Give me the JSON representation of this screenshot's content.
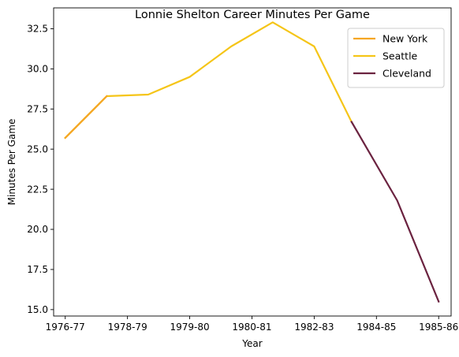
{
  "chart_data": {
    "type": "line",
    "title": "Lonnie Shelton Career Minutes Per Game",
    "xlabel": "Year",
    "ylabel": "Minutes Per Game",
    "xlim": [
      -0.28,
      9.3
    ],
    "ylim": [
      14.6,
      33.8
    ],
    "x_ticks": [
      {
        "pos": 0,
        "label": "1976-77"
      },
      {
        "pos": 1.5,
        "label": "1978-79"
      },
      {
        "pos": 3,
        "label": "1979-80"
      },
      {
        "pos": 4.5,
        "label": "1980-81"
      },
      {
        "pos": 6,
        "label": "1982-83"
      },
      {
        "pos": 7.5,
        "label": "1984-85"
      },
      {
        "pos": 9,
        "label": "1985-86"
      }
    ],
    "y_ticks": [
      {
        "value": 15.0,
        "label": "15.0"
      },
      {
        "value": 17.5,
        "label": "17.5"
      },
      {
        "value": 20.0,
        "label": "20.0"
      },
      {
        "value": 22.5,
        "label": "22.5"
      },
      {
        "value": 25.0,
        "label": "25.0"
      },
      {
        "value": 27.5,
        "label": "27.5"
      },
      {
        "value": 30.0,
        "label": "30.0"
      },
      {
        "value": 32.5,
        "label": "32.5"
      }
    ],
    "grid": false,
    "legend_position": "top-right",
    "series": [
      {
        "name": "Seattle",
        "color": "#F5C518",
        "points": [
          [
            0,
            25.7
          ],
          [
            1,
            28.3
          ],
          [
            2,
            28.4
          ],
          [
            3,
            29.5
          ],
          [
            4,
            31.4
          ],
          [
            5,
            32.9
          ],
          [
            6,
            31.4
          ],
          [
            6.9,
            26.7
          ]
        ]
      },
      {
        "name": "New York",
        "color": "#F5A623",
        "points": [
          [
            0,
            25.7
          ],
          [
            1,
            28.3
          ]
        ]
      },
      {
        "name": "Cleveland",
        "color": "#6B2340",
        "points": [
          [
            6.9,
            26.7
          ],
          [
            8,
            21.8
          ],
          [
            9,
            15.5
          ]
        ]
      }
    ],
    "legend_order": [
      "New York",
      "Seattle",
      "Cleveland"
    ]
  }
}
